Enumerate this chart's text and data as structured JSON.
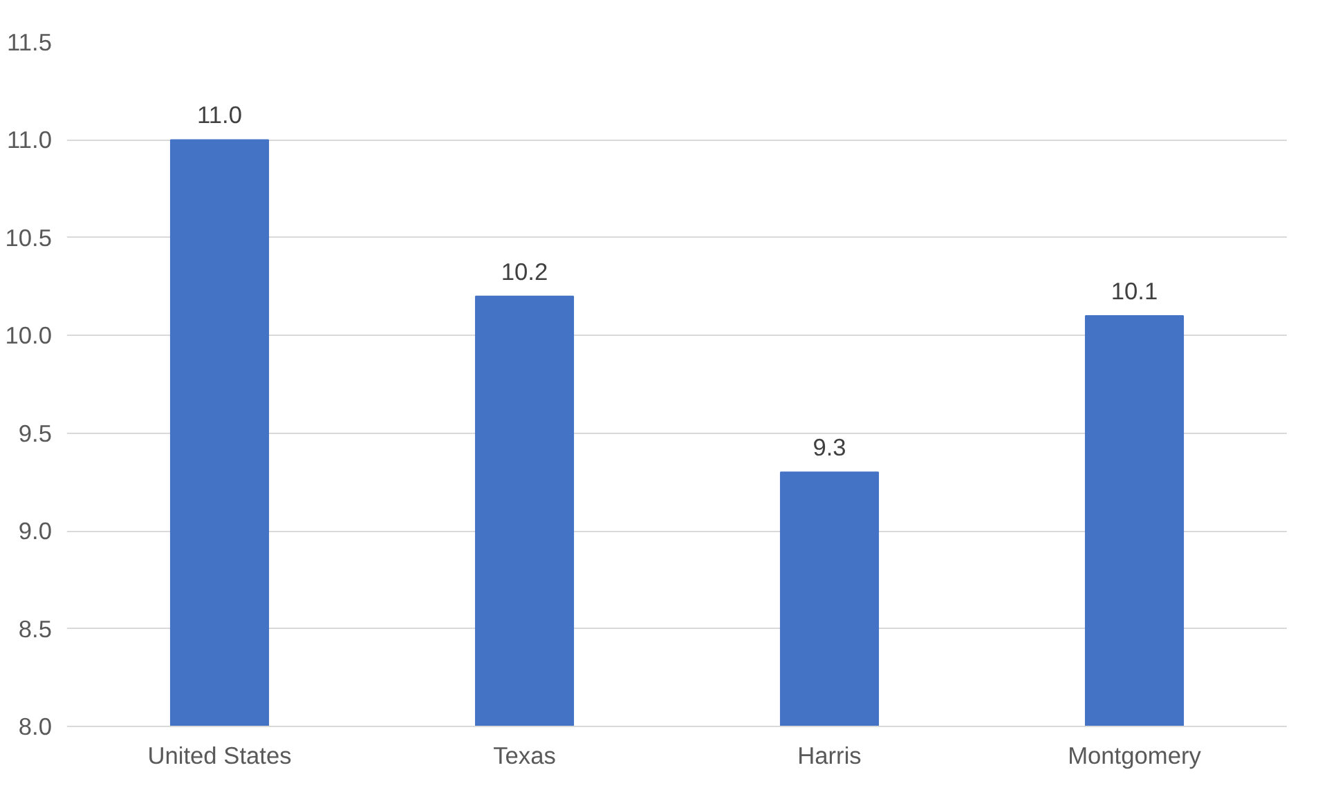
{
  "chart_data": {
    "type": "bar",
    "categories": [
      "United States",
      "Texas",
      "Harris",
      "Montgomery"
    ],
    "values": [
      11.0,
      10.2,
      9.3,
      10.1
    ],
    "color": "#4472c4",
    "ylim": [
      8.0,
      11.5
    ],
    "yticks": [
      {
        "value": 8.0,
        "label": "8.0"
      },
      {
        "value": 8.5,
        "label": "8.5"
      },
      {
        "value": 9.0,
        "label": "9.0"
      },
      {
        "value": 9.5,
        "label": "9.5"
      },
      {
        "value": 10.0,
        "label": "10.0"
      },
      {
        "value": 10.5,
        "label": "10.5"
      },
      {
        "value": 11.0,
        "label": "11.0"
      },
      {
        "value": 11.5,
        "label": "11.5"
      }
    ],
    "grid": "y",
    "value_labels": [
      "11.0",
      "10.2",
      "9.3",
      "10.1"
    ]
  }
}
